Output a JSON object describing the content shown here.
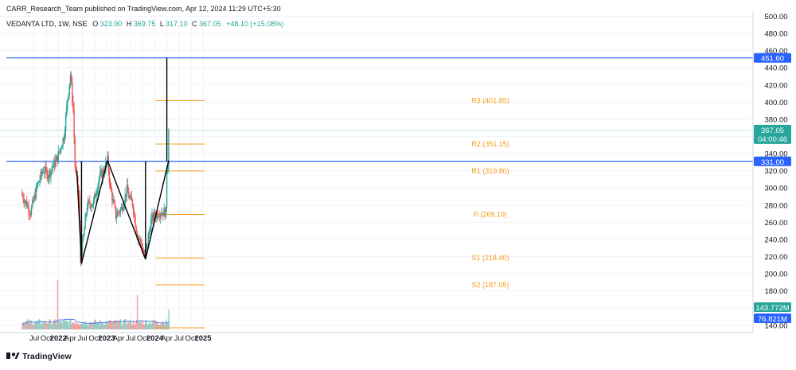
{
  "header": {
    "published": "CARR_Research_Team published on TradingView.com, Apr 12, 2024 11:29 UTC+5:30",
    "symbol": "VEDANTA LTD, 1W, NSE",
    "o_label": "O",
    "o_value": "323.90",
    "h_label": "H",
    "h_value": "369.75",
    "l_label": "L",
    "l_value": "317.10",
    "c_label": "C",
    "c_value": "367.05",
    "change": "+48.10 (+15.08%)"
  },
  "branding": {
    "logo_text": "TradingView"
  },
  "colors": {
    "up": "#26a69a",
    "down": "#ef5350",
    "up_vol": "#8ed1c8",
    "down_vol": "#f5a3a1",
    "pivot": "#f59d1a",
    "level_line": "#2962ff",
    "vol_ma": "#4a74e8",
    "pattern": "#000000",
    "price_tag": "#26a69a",
    "volume_tag": "#26a69a",
    "ma_tag": "#2962ff"
  },
  "chart_data": {
    "type": "candlestick",
    "x_tick_labels": [
      "Jul",
      "Oct",
      "2022",
      "Apr",
      "Jul",
      "Oct",
      "2023",
      "Apr",
      "Jul",
      "Oct",
      "2024",
      "Apr",
      "Jul",
      "Oct",
      "2025"
    ],
    "y_tick_labels": [
      "140.00",
      "160.00",
      "180.00",
      "200.00",
      "220.00",
      "240.00",
      "260.00",
      "280.00",
      "300.00",
      "320.00",
      "340.00",
      "360.00",
      "380.00",
      "400.00",
      "420.00",
      "440.00",
      "460.00",
      "480.00",
      "500.00"
    ],
    "ylim": [
      137,
      500
    ],
    "grid": true,
    "anchors": [
      {
        "date": "2021-04-02",
        "price": 294
      },
      {
        "date": "2021-06-11",
        "price": 272
      },
      {
        "date": "2021-08-06",
        "price": 305
      },
      {
        "date": "2021-09-17",
        "price": 322
      },
      {
        "date": "2021-10-22",
        "price": 315
      },
      {
        "date": "2021-12-31",
        "price": 335
      },
      {
        "date": "2022-02-18",
        "price": 360
      },
      {
        "date": "2022-03-18",
        "price": 405
      },
      {
        "date": "2022-04-08",
        "price": 432
      },
      {
        "date": "2022-04-29",
        "price": 392
      },
      {
        "date": "2022-05-13",
        "price": 325
      },
      {
        "date": "2022-06-10",
        "price": 290
      },
      {
        "date": "2022-06-24",
        "price": 215
      },
      {
        "date": "2022-08-12",
        "price": 280
      },
      {
        "date": "2022-09-30",
        "price": 283
      },
      {
        "date": "2022-11-11",
        "price": 312
      },
      {
        "date": "2022-12-16",
        "price": 320
      },
      {
        "date": "2023-01-13",
        "price": 332
      },
      {
        "date": "2023-02-03",
        "price": 300
      },
      {
        "date": "2023-03-17",
        "price": 268
      },
      {
        "date": "2023-04-28",
        "price": 276
      },
      {
        "date": "2023-06-09",
        "price": 298
      },
      {
        "date": "2023-06-30",
        "price": 287
      },
      {
        "date": "2023-07-21",
        "price": 282
      },
      {
        "date": "2023-08-25",
        "price": 245
      },
      {
        "date": "2023-09-22",
        "price": 236
      },
      {
        "date": "2023-10-20",
        "price": 218
      },
      {
        "date": "2023-11-10",
        "price": 237
      },
      {
        "date": "2023-12-08",
        "price": 262
      },
      {
        "date": "2024-01-05",
        "price": 268
      },
      {
        "date": "2024-02-09",
        "price": 272
      },
      {
        "date": "2024-03-15",
        "price": 272
      },
      {
        "date": "2024-03-29",
        "price": 271
      },
      {
        "date": "2024-04-05",
        "price": 323.9
      }
    ],
    "last_candle": {
      "date": "2024-04-12",
      "open": 323.9,
      "high": 369.75,
      "low": 317.1,
      "close": 367.05
    },
    "volume_peaks": [
      {
        "date": "2021-12-24",
        "volume": 360,
        "up": true
      },
      {
        "date": "2023-08-18",
        "volume": 250,
        "up": false
      },
      {
        "date": "2024-04-12",
        "volume": 143.772,
        "up": true
      }
    ],
    "volume_axis_max": 750,
    "pivot_levels": [
      {
        "label": "R3 (401.85)",
        "price": 401.85
      },
      {
        "label": "R2 (351.15)",
        "price": 351.15
      },
      {
        "label": "R1 (319.80)",
        "price": 319.8
      },
      {
        "label": "P (269.10)",
        "price": 269.1
      },
      {
        "label": "S1 (218.40)",
        "price": 218.4
      },
      {
        "label": "S2 (187.05)",
        "price": 187.05
      },
      {
        "label": "",
        "price": 137
      }
    ],
    "pivot_start": "2024-01-05",
    "pivot_end": "2025-01-10",
    "horizontal_levels": [
      {
        "price": 451.6,
        "label": "451.60"
      },
      {
        "price": 331.0,
        "label": "331.00"
      }
    ],
    "price_tag": {
      "value": "367.05",
      "countdown": "04:00:46",
      "price": 367.05
    },
    "volume_tags": [
      {
        "label": "143.772M",
        "kind": "volume"
      },
      {
        "label": "76.821M",
        "kind": "ma"
      }
    ],
    "pattern_lines": [
      [
        {
          "date": "2022-05-20",
          "price": 320
        },
        {
          "date": "2022-06-24",
          "price": 212
        }
      ],
      [
        {
          "date": "2022-06-24",
          "price": 212
        },
        {
          "date": "2023-01-06",
          "price": 332
        }
      ],
      [
        {
          "date": "2023-01-06",
          "price": 332
        },
        {
          "date": "2023-10-20",
          "price": 217
        }
      ],
      [
        {
          "date": "2023-10-20",
          "price": 217
        },
        {
          "date": "2024-04-12",
          "price": 332
        }
      ]
    ],
    "vertical_lines": [
      {
        "date": "2022-06-24",
        "from": 212,
        "to": 331
      },
      {
        "date": "2023-10-20",
        "from": 217,
        "to": 331
      },
      {
        "date": "2024-03-29",
        "from": 331,
        "to": 451.6
      }
    ]
  }
}
